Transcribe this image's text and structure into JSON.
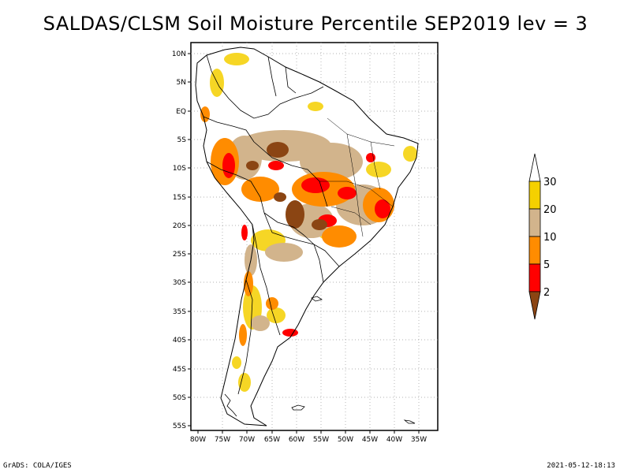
{
  "title": "SALDAS/CLSM Soil Moisture Percentile SEP2019 lev = 3",
  "footer": {
    "left": "GrADS: COLA/IGES",
    "right": "2021-05-12-18:13"
  },
  "map": {
    "lat_ticks": [
      "10N",
      "5N",
      "EQ",
      "5S",
      "10S",
      "15S",
      "20S",
      "25S",
      "30S",
      "35S",
      "40S",
      "45S",
      "50S",
      "55S"
    ],
    "lon_ticks": [
      "80W",
      "75W",
      "70W",
      "65W",
      "60W",
      "55W",
      "50W",
      "45W",
      "40W",
      "35W"
    ],
    "extent": {
      "lon_min": -80,
      "lon_max": -33,
      "lat_min": -56,
      "lat_max": 12
    }
  },
  "colorbar": {
    "labels": [
      "30",
      "20",
      "10",
      "5",
      "2"
    ],
    "colors": {
      "above30": "#ffffff",
      "c20_30": "#f5d000",
      "c10_20": "#d2b48c",
      "c5_10": "#ff8c00",
      "c2_5": "#ff0000",
      "below2": "#8b4513"
    }
  }
}
